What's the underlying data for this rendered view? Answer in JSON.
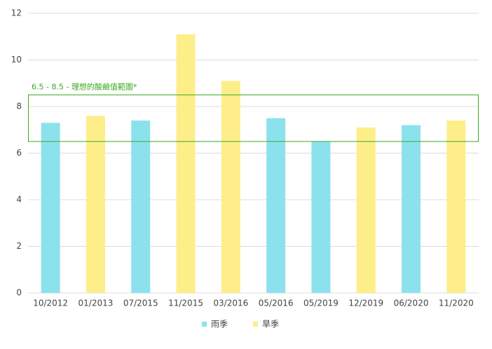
{
  "chart_data": {
    "type": "bar",
    "categories": [
      "10/2012",
      "01/2013",
      "07/2015",
      "11/2015",
      "03/2016",
      "05/2016",
      "05/2019",
      "12/2019",
      "06/2020",
      "11/2020"
    ],
    "series": [
      {
        "name": "雨季",
        "color": "#8ce2ec",
        "values": [
          7.3,
          null,
          7.4,
          null,
          null,
          7.5,
          6.5,
          null,
          7.2,
          null
        ]
      },
      {
        "name": "旱季",
        "color": "#fdee8a",
        "values": [
          null,
          7.6,
          null,
          11.1,
          9.1,
          null,
          null,
          7.1,
          null,
          7.4
        ]
      }
    ],
    "ylim": [
      0,
      12
    ],
    "yticks": [
      0,
      2,
      4,
      6,
      8,
      10,
      12
    ],
    "grid": true,
    "annotation": {
      "range": [
        6.5,
        8.5
      ],
      "label": "6.5 - 8.5 - 理想的酸鹼值範圍*",
      "color": "#3aaa1f"
    },
    "legend": "bottom"
  }
}
